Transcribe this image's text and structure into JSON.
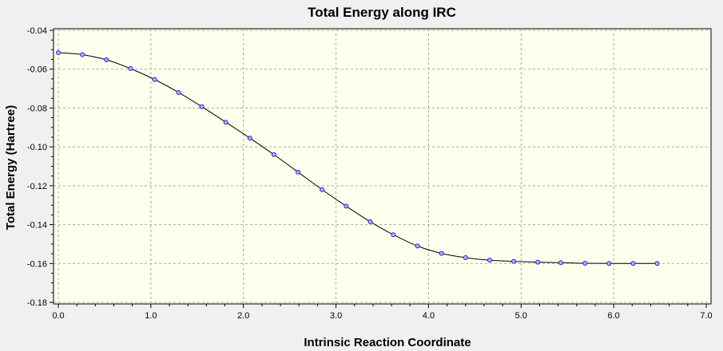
{
  "chart_data": {
    "type": "line",
    "title": "Total Energy along IRC",
    "xlabel": "Intrinsic Reaction Coordinate",
    "ylabel": "Total Energy (Hartree)",
    "xlim": [
      0.0,
      7.0
    ],
    "ylim": [
      -0.18,
      -0.04
    ],
    "xticks": [
      "0.0",
      "1.0",
      "2.0",
      "3.0",
      "4.0",
      "5.0",
      "6.0",
      "7.0"
    ],
    "yticks": [
      "-0.04",
      "-0.06",
      "-0.08",
      "-0.10",
      "-0.12",
      "-0.14",
      "-0.16",
      "-0.18"
    ],
    "grid": true,
    "plot_background": "#ffffee",
    "line_color": "#000000",
    "marker_color": "#2020d0",
    "x": [
      0.0,
      0.26,
      0.52,
      0.78,
      1.04,
      1.3,
      1.55,
      1.81,
      2.07,
      2.33,
      2.59,
      2.85,
      3.11,
      3.37,
      3.62,
      3.88,
      4.14,
      4.4,
      4.66,
      4.92,
      5.18,
      5.43,
      5.69,
      5.95,
      6.21,
      6.47
    ],
    "y": [
      -0.0515,
      -0.0525,
      -0.0552,
      -0.0597,
      -0.0653,
      -0.072,
      -0.0793,
      -0.0873,
      -0.0955,
      -0.104,
      -0.113,
      -0.122,
      -0.1305,
      -0.1385,
      -0.1452,
      -0.151,
      -0.1548,
      -0.157,
      -0.1583,
      -0.1589,
      -0.1593,
      -0.1596,
      -0.1599,
      -0.16,
      -0.16,
      -0.16
    ]
  }
}
